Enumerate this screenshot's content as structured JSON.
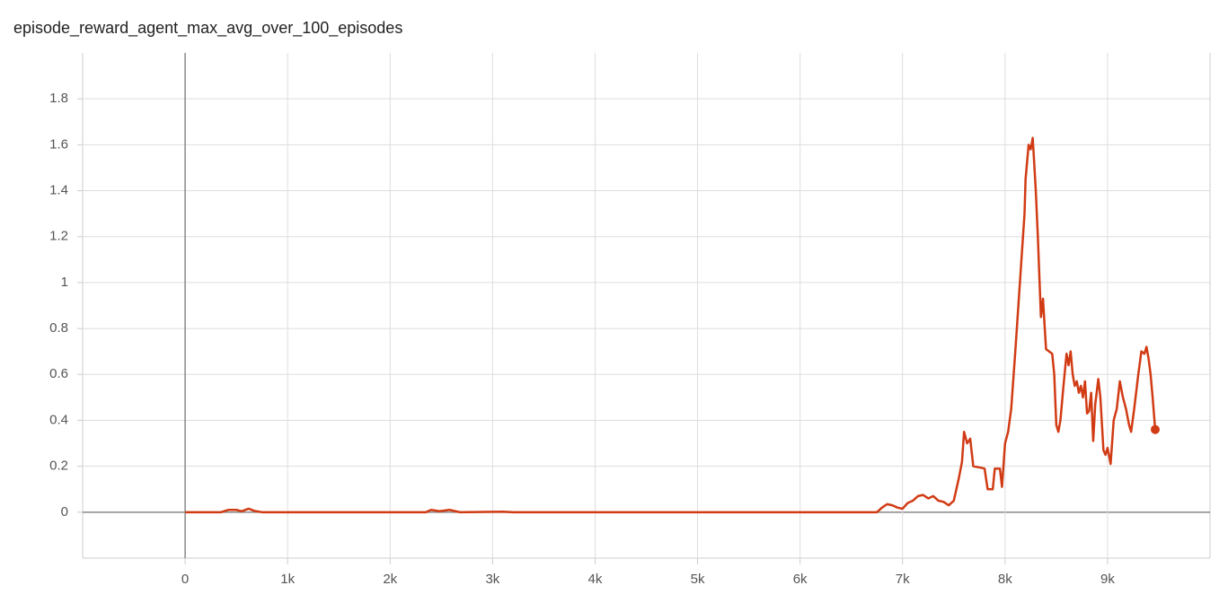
{
  "chart_data": {
    "type": "line",
    "title": "episode_reward_agent_max_avg_over_100_episodes",
    "color": "#d13b14",
    "grid": true,
    "xlim": [
      -1000,
      10000
    ],
    "ylim": [
      -0.2,
      2.0
    ],
    "xticks": [
      0,
      {
        "value": 1000,
        "label": "1k"
      },
      {
        "value": 2000,
        "label": "2k"
      },
      {
        "value": 3000,
        "label": "3k"
      },
      {
        "value": 4000,
        "label": "4k"
      },
      {
        "value": 5000,
        "label": "5k"
      },
      {
        "value": 6000,
        "label": "6k"
      },
      {
        "value": 7000,
        "label": "7k"
      },
      {
        "value": 8000,
        "label": "8k"
      },
      {
        "value": 9000,
        "label": "9k"
      }
    ],
    "yticks": [
      0,
      0.2,
      0.4,
      0.6,
      0.8,
      1,
      1.2,
      1.4,
      1.6,
      1.8
    ],
    "x": [
      0,
      350,
      420,
      500,
      550,
      620,
      680,
      750,
      2350,
      2400,
      2480,
      2580,
      2680,
      3100,
      3200,
      6750,
      6800,
      6850,
      6900,
      6950,
      7000,
      7050,
      7100,
      7150,
      7200,
      7250,
      7300,
      7350,
      7400,
      7450,
      7500,
      7550,
      7580,
      7600,
      7630,
      7660,
      7690,
      7750,
      7800,
      7830,
      7880,
      7900,
      7950,
      7970,
      8000,
      8030,
      8060,
      8100,
      8130,
      8160,
      8190,
      8200,
      8230,
      8250,
      8270,
      8300,
      8320,
      8350,
      8370,
      8400,
      8460,
      8480,
      8500,
      8520,
      8540,
      8570,
      8600,
      8620,
      8640,
      8660,
      8680,
      8700,
      8720,
      8740,
      8760,
      8780,
      8800,
      8820,
      8840,
      8860,
      8880,
      8910,
      8930,
      8960,
      8980,
      9000,
      9030,
      9060,
      9090,
      9120,
      9150,
      9180,
      9210,
      9230,
      9260,
      9300,
      9330,
      9360,
      9380,
      9400,
      9420,
      9440,
      9465
    ],
    "values": [
      0,
      0,
      0.01,
      0.01,
      0.004,
      0.015,
      0.005,
      0,
      0,
      0.01,
      0.004,
      0.01,
      0,
      0.002,
      0,
      0,
      0.02,
      0.035,
      0.03,
      0.02,
      0.015,
      0.04,
      0.05,
      0.07,
      0.075,
      0.06,
      0.07,
      0.05,
      0.045,
      0.03,
      0.05,
      0.15,
      0.22,
      0.35,
      0.3,
      0.32,
      0.2,
      0.195,
      0.19,
      0.1,
      0.1,
      0.19,
      0.19,
      0.11,
      0.3,
      0.35,
      0.45,
      0.7,
      0.9,
      1.1,
      1.3,
      1.45,
      1.6,
      1.58,
      1.63,
      1.4,
      1.2,
      0.85,
      0.93,
      0.71,
      0.69,
      0.6,
      0.38,
      0.35,
      0.4,
      0.55,
      0.69,
      0.64,
      0.7,
      0.6,
      0.55,
      0.57,
      0.52,
      0.55,
      0.5,
      0.57,
      0.43,
      0.44,
      0.52,
      0.31,
      0.47,
      0.58,
      0.5,
      0.27,
      0.25,
      0.28,
      0.21,
      0.4,
      0.45,
      0.57,
      0.5,
      0.45,
      0.38,
      0.35,
      0.45,
      0.6,
      0.7,
      0.69,
      0.72,
      0.67,
      0.6,
      0.5,
      0.36
    ]
  }
}
